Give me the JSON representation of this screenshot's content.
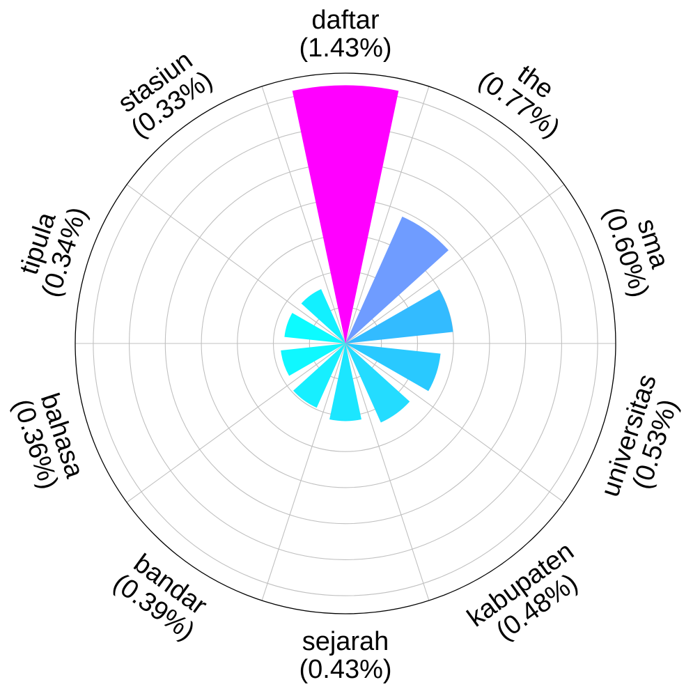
{
  "chart_data": {
    "type": "bar",
    "subtype": "polar",
    "categories": [
      "daftar",
      "the",
      "sma",
      "universitas",
      "kabupaten",
      "sejarah",
      "bandar",
      "bahasa",
      "tipula",
      "stasiun"
    ],
    "value_labels": [
      "(1.43%)",
      "(0.77%)",
      "(0.60%)",
      "(0.53%)",
      "(0.48%)",
      "(0.43%)",
      "(0.39%)",
      "(0.36%)",
      "(0.34%)",
      "(0.33%)"
    ],
    "values": [
      1.43,
      0.77,
      0.6,
      0.53,
      0.48,
      0.43,
      0.39,
      0.36,
      0.34,
      0.33
    ],
    "colors": [
      "#ff00ff",
      "#6f9cff",
      "#33bbff",
      "#29c9ff",
      "#24dcff",
      "#1ce6ff",
      "#17efff",
      "#0ff8ff",
      "#0cfbff",
      "#12f0ff"
    ],
    "rlim": [
      0,
      1.43
    ],
    "direction": "clockwise",
    "start": "top",
    "grid": true,
    "legend": "none"
  }
}
